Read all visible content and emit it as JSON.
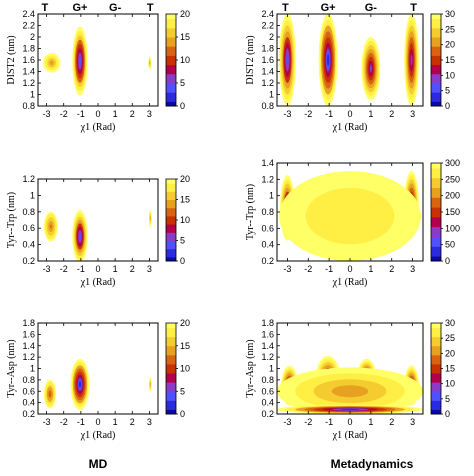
{
  "columns": [
    "MD",
    "Metadynamics"
  ],
  "state_labels": [
    "T",
    "G+",
    "G-",
    "T"
  ],
  "colors": {
    "colormap": [
      "#0a0aa0",
      "#2a2ae0",
      "#5050ff",
      "#8a3cc8",
      "#b4004a",
      "#c83200",
      "#d86410",
      "#e8a020",
      "#f4cc30",
      "#ffee44",
      "#ffff66"
    ],
    "background": "#ffffff"
  },
  "chart_data": [
    {
      "type": "heatmap",
      "id": "md-dist2",
      "column": "MD",
      "xlabel": "χ1 (Rad)",
      "ylabel": "DIST2 (nm)",
      "xlim": [
        -3.5,
        3.5
      ],
      "ylim": [
        0.8,
        2.4
      ],
      "xticks": [
        "-3",
        "-2",
        "-1",
        "0",
        "1",
        "2",
        "3"
      ],
      "yticks": [
        "0.8",
        "1",
        "1.2",
        "1.4",
        "1.6",
        "1.8",
        "2",
        "2.2",
        "2.4"
      ],
      "colorbar": {
        "min": 0,
        "max": 20,
        "ticks": [
          "0",
          "5",
          "10",
          "15",
          "20"
        ]
      },
      "state_labels": true,
      "regions": [
        {
          "cx": -1.05,
          "cy": 1.58,
          "rx": 0.45,
          "ry": 0.6,
          "fmin": 3
        },
        {
          "cx": -2.7,
          "cy": 1.55,
          "rx": 0.5,
          "ry": 0.17,
          "fmin": 13
        },
        {
          "cx": 3.02,
          "cy": 1.55,
          "rx": 0.08,
          "ry": 0.12,
          "fmin": 13
        }
      ]
    },
    {
      "type": "heatmap",
      "id": "meta-dist2",
      "column": "Metadynamics",
      "xlabel": "χ1 (Rad)",
      "ylabel": "DIST2 (nm)",
      "xlim": [
        -3.5,
        3.5
      ],
      "ylim": [
        0.8,
        2.4
      ],
      "xticks": [
        "-3",
        "-2",
        "-1",
        "0",
        "1",
        "2",
        "3"
      ],
      "yticks": [
        "0.8",
        "1",
        "1.2",
        "1.4",
        "1.6",
        "1.8",
        "2",
        "2.2",
        "2.4"
      ],
      "colorbar": {
        "min": 0,
        "max": 30,
        "ticks": [
          "0",
          "5",
          "10",
          "15",
          "20",
          "25",
          "30"
        ]
      },
      "state_labels": true,
      "regions": [
        {
          "cx": -3.0,
          "cy": 1.6,
          "rx": 0.4,
          "ry": 0.8,
          "fmin": 4
        },
        {
          "cx": -1.05,
          "cy": 1.6,
          "rx": 0.45,
          "ry": 0.8,
          "fmin": 2
        },
        {
          "cx": 1.0,
          "cy": 1.45,
          "rx": 0.45,
          "ry": 0.55,
          "fmin": 5
        },
        {
          "cx": 2.95,
          "cy": 1.6,
          "rx": 0.35,
          "ry": 0.8,
          "fmin": 5
        }
      ]
    },
    {
      "type": "heatmap",
      "id": "md-tyr-trp",
      "column": "MD",
      "xlabel": "χ1 (Rad)",
      "ylabel": "Tyr--Trp (nm)",
      "xlim": [
        -3.5,
        3.5
      ],
      "ylim": [
        0.2,
        1.2
      ],
      "xticks": [
        "-3",
        "-2",
        "-1",
        "0",
        "1",
        "2",
        "3"
      ],
      "yticks": [
        "0.2",
        "0.4",
        "0.6",
        "0.8",
        "1",
        "1.2"
      ],
      "colorbar": {
        "min": 0,
        "max": 20,
        "ticks": [
          "0",
          "5",
          "10",
          "15",
          "20"
        ]
      },
      "state_labels": false,
      "regions": [
        {
          "cx": -1.05,
          "cy": 0.5,
          "rx": 0.45,
          "ry": 0.32,
          "fmin": 4
        },
        {
          "cx": -2.75,
          "cy": 0.62,
          "rx": 0.4,
          "ry": 0.18,
          "fmin": 12
        },
        {
          "cx": 3.05,
          "cy": 0.72,
          "rx": 0.08,
          "ry": 0.1,
          "fmin": 14
        }
      ]
    },
    {
      "type": "heatmap",
      "id": "meta-tyr-trp",
      "column": "Metadynamics",
      "xlabel": "χ1 (Rad)",
      "ylabel": "Tyr--Trp (nm)",
      "xlim": [
        -3.5,
        3.5
      ],
      "ylim": [
        0.2,
        1.4
      ],
      "xticks": [
        "-3",
        "-2",
        "-1",
        "0",
        "1",
        "2",
        "3"
      ],
      "yticks": [
        "0.2",
        "0.4",
        "0.6",
        "0.8",
        "1",
        "1.2",
        "1.4"
      ],
      "colorbar": {
        "min": 0,
        "max": 300,
        "ticks": [
          "0",
          "50",
          "100",
          "150",
          "200",
          "250",
          "300"
        ]
      },
      "state_labels": false,
      "regions": [
        {
          "cx": -3.0,
          "cy": 0.85,
          "rx": 0.35,
          "ry": 0.4,
          "fmin": 4
        },
        {
          "cx": -1.05,
          "cy": 0.62,
          "rx": 0.5,
          "ry": 0.35,
          "fmin": 3
        },
        {
          "cx": 0.8,
          "cy": 0.48,
          "rx": 0.5,
          "ry": 0.18,
          "fmin": 5
        },
        {
          "cx": 2.95,
          "cy": 0.9,
          "rx": 0.35,
          "ry": 0.4,
          "fmin": 5
        },
        {
          "cx": 0.0,
          "cy": 0.75,
          "rx": 3.4,
          "ry": 0.55,
          "fmin": 17
        }
      ]
    },
    {
      "type": "heatmap",
      "id": "md-tyr-asp",
      "column": "MD",
      "xlabel": "χ1 (Rad)",
      "ylabel": "Tyr--Asp (nm)",
      "xlim": [
        -3.5,
        3.5
      ],
      "ylim": [
        0.2,
        1.8
      ],
      "xticks": [
        "-3",
        "-2",
        "-1",
        "0",
        "1",
        "2",
        "3"
      ],
      "yticks": [
        "0.2",
        "0.4",
        "0.6",
        "0.8",
        "1",
        "1.2",
        "1.4",
        "1.6",
        "1.8"
      ],
      "colorbar": {
        "min": 0,
        "max": 20,
        "ticks": [
          "0",
          "5",
          "10",
          "15",
          "20"
        ]
      },
      "state_labels": false,
      "regions": [
        {
          "cx": -1.05,
          "cy": 0.72,
          "rx": 0.55,
          "ry": 0.45,
          "fmin": 2
        },
        {
          "cx": -2.8,
          "cy": 0.55,
          "rx": 0.35,
          "ry": 0.25,
          "fmin": 11
        },
        {
          "cx": 3.05,
          "cy": 0.72,
          "rx": 0.08,
          "ry": 0.12,
          "fmin": 14
        }
      ]
    },
    {
      "type": "heatmap",
      "id": "meta-tyr-asp",
      "column": "Metadynamics",
      "xlabel": "χ1 (Rad)",
      "ylabel": "Tyr--Asp (nm)",
      "xlim": [
        -3.5,
        3.5
      ],
      "ylim": [
        0.2,
        1.8
      ],
      "xticks": [
        "-3",
        "-2",
        "-1",
        "0",
        "1",
        "2",
        "3"
      ],
      "yticks": [
        "0.2",
        "0.4",
        "0.6",
        "0.8",
        "1",
        "1.2",
        "1.4",
        "1.6",
        "1.8"
      ],
      "colorbar": {
        "min": 0,
        "max": 30,
        "ticks": [
          "0",
          "5",
          "10",
          "15",
          "20",
          "25",
          "30"
        ]
      },
      "state_labels": false,
      "regions": [
        {
          "cx": -1.05,
          "cy": 0.8,
          "rx": 0.6,
          "ry": 0.42,
          "fmin": 4
        },
        {
          "cx": 0.8,
          "cy": 0.85,
          "rx": 0.45,
          "ry": 0.32,
          "fmin": 5
        },
        {
          "cx": -2.9,
          "cy": 0.7,
          "rx": 0.4,
          "ry": 0.35,
          "fmin": 6
        },
        {
          "cx": 2.95,
          "cy": 0.7,
          "rx": 0.35,
          "ry": 0.35,
          "fmin": 6
        },
        {
          "cx": 0.0,
          "cy": 0.6,
          "rx": 3.5,
          "ry": 0.42,
          "fmin": 14
        },
        {
          "cx": 0.0,
          "cy": 0.28,
          "rx": 3.5,
          "ry": 0.08,
          "fmin": 2
        }
      ]
    }
  ]
}
